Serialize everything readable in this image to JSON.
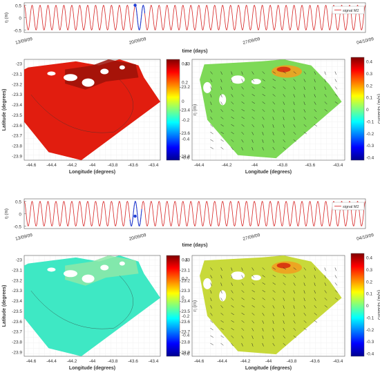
{
  "panels": [
    {
      "id": "top",
      "signal": {
        "ylabel": "η (m)",
        "yticks": [
          0.5,
          0,
          -0.5
        ],
        "ylim": [
          -0.6,
          0.6
        ],
        "xticks": [
          "13/09/09",
          "20/09/09",
          "27/09/09",
          "04/10/09"
        ],
        "xlabel": "time (days)",
        "legend": "signal M2",
        "cycles": 43,
        "highlight_start_fraction": 0.325,
        "highlight_cycles": 1.25,
        "marker": {
          "position_fraction": 0.325,
          "value": 0.5
        }
      },
      "elevation_map": {
        "ylabel": "Latitude (degrees)",
        "xlabel": "Longitude (degrees)",
        "yticks": [
          "-23",
          "-23.1",
          "-23.2",
          "-23.3",
          "-23.4",
          "-23.5",
          "-23.6",
          "-23.7",
          "-23.8",
          "-23.9"
        ],
        "xticks": [
          "-44.6",
          "-44.4",
          "-44.2",
          "-44",
          "-43.8",
          "-43.6",
          "-43.4"
        ],
        "fill_color": "#e11d0f",
        "bay_color": "#9b1208"
      },
      "elevation_colorbar": {
        "label": "η (m)",
        "ticks": [
          "0.4",
          "0.2",
          "0",
          "-0.2",
          "-0.4",
          "-0.6"
        ]
      },
      "current_map": {
        "xlabel": "Longitude (degrees)",
        "yticks": [
          "-23",
          "-23.2",
          "-23.4",
          "-23.6",
          "-23.8"
        ],
        "xticks": [
          "-44.4",
          "-44.2",
          "-44",
          "-43.8",
          "-43.6",
          "-43.4"
        ],
        "field_color": "#7ed957"
      },
      "current_colorbar": {
        "label": "currents (m/s)",
        "ticks": [
          "0.4",
          "0.3",
          "0.2",
          "0.1",
          "0",
          "-0.1",
          "-0.2",
          "-0.3",
          "-0.4"
        ]
      }
    },
    {
      "id": "bottom",
      "signal": {
        "ylabel": "η (m)",
        "yticks": [
          0.5,
          0,
          -0.5
        ],
        "ylim": [
          -0.6,
          0.6
        ],
        "xticks": [
          "13/09/09",
          "20/09/09",
          "27/09/09",
          "04/10/09"
        ],
        "xlabel": "time (days)",
        "legend": "signal M2",
        "cycles": 43,
        "highlight_start_fraction": 0.31,
        "highlight_cycles": 1.5,
        "marker": {
          "position_fraction": 0.325,
          "value": -0.1
        }
      },
      "elevation_map": {
        "ylabel": "Latitude (degrees)",
        "xlabel": "Longitude (degrees)",
        "yticks": [
          "-23",
          "-23.1",
          "-23.2",
          "-23.3",
          "-23.4",
          "-23.5",
          "-23.6",
          "-23.7",
          "-23.8",
          "-23.9"
        ],
        "xticks": [
          "-44.6",
          "-44.4",
          "-44.2",
          "-44",
          "-43.8",
          "-43.6",
          "-43.4"
        ],
        "fill_color": "#3ee8c4",
        "bay_color": "#8ee8a8"
      },
      "elevation_colorbar": {
        "label": "η (m)",
        "ticks": [
          "0.4",
          "0.2",
          "0",
          "-0.2",
          "-0.4",
          "-0.6"
        ]
      },
      "current_map": {
        "xlabel": "Longitude (degrees)",
        "yticks": [
          "-23",
          "-23.1",
          "-23.2",
          "-23.3",
          "-23.4",
          "-23.5",
          "-23.6",
          "-23.7",
          "-23.8",
          "-23.9"
        ],
        "xticks": [
          "-44.6",
          "-44.4",
          "-44.2",
          "-44",
          "-43.8",
          "-43.6",
          "-43.4"
        ],
        "field_color": "#c8d93a"
      },
      "current_colorbar": {
        "label": "currents (m/s)",
        "ticks": [
          "0.4",
          "0.3",
          "0.2",
          "0.1",
          "0",
          "-0.1",
          "-0.2",
          "-0.3",
          "-0.4"
        ]
      }
    }
  ],
  "chart_data": [
    {
      "type": "line",
      "title": "",
      "series": [
        {
          "name": "signal M2"
        }
      ],
      "ylabel": "η (m)",
      "xlabel": "time (days)",
      "ylim": [
        -0.6,
        0.6
      ],
      "x_tick_labels": [
        "13/09/09",
        "20/09/09",
        "27/09/09",
        "04/10/09"
      ],
      "amplitude": 0.5,
      "cycles": 43
    },
    {
      "type": "heatmap",
      "xlabel": "Longitude (degrees)",
      "ylabel": "Latitude (degrees)",
      "xlim": [
        -44.7,
        -43.35
      ],
      "ylim": [
        -23.95,
        -22.95
      ],
      "colorbar_label": "η (m)",
      "colorbar_range": [
        -0.6,
        0.5
      ]
    },
    {
      "type": "heatmap",
      "xlabel": "Longitude (degrees)",
      "colorbar_label": "currents (m/s)",
      "colorbar_range": [
        -0.4,
        0.4
      ]
    },
    {
      "type": "line",
      "title": "",
      "series": [
        {
          "name": "signal M2"
        }
      ],
      "ylabel": "η (m)",
      "xlabel": "time (days)",
      "ylim": [
        -0.6,
        0.6
      ],
      "x_tick_labels": [
        "13/09/09",
        "20/09/09",
        "27/09/09",
        "04/10/09"
      ],
      "amplitude": 0.5,
      "cycles": 43
    },
    {
      "type": "heatmap",
      "xlabel": "Longitude (degrees)",
      "ylabel": "Latitude (degrees)",
      "xlim": [
        -44.7,
        -43.35
      ],
      "ylim": [
        -23.95,
        -22.95
      ],
      "colorbar_label": "η (m)",
      "colorbar_range": [
        -0.6,
        0.5
      ]
    },
    {
      "type": "heatmap",
      "xlabel": "Longitude (degrees)",
      "ylabel": "Latitude (degrees)",
      "colorbar_label": "currents (m/s)",
      "colorbar_range": [
        -0.4,
        0.4
      ]
    }
  ]
}
